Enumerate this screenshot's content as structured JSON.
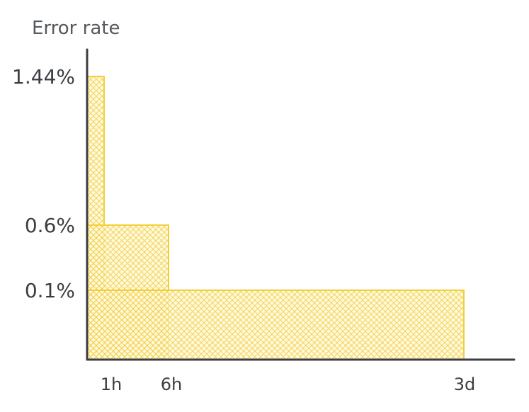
{
  "chart_data": {
    "type": "bar",
    "ylabel": "Error rate",
    "y_scale": "categorical",
    "bars": [
      {
        "window_end": "1h",
        "value": 1.44,
        "value_label": "1.44%"
      },
      {
        "window_end": "6h",
        "value": 0.6,
        "value_label": "0.6%"
      },
      {
        "window_end": "3d",
        "value": 0.1,
        "value_label": "0.1%"
      }
    ],
    "x_ticks": [
      "1h",
      "6h",
      "3d"
    ],
    "y_ticks": [
      "1.44%",
      "0.6%",
      "0.1%"
    ],
    "grid": false,
    "legend": "none",
    "colors": {
      "bar_fill": "#fbe07a",
      "bar_stroke": "#f2cf3a",
      "axis": "#3a3d42",
      "text": "#3a3d42"
    }
  }
}
